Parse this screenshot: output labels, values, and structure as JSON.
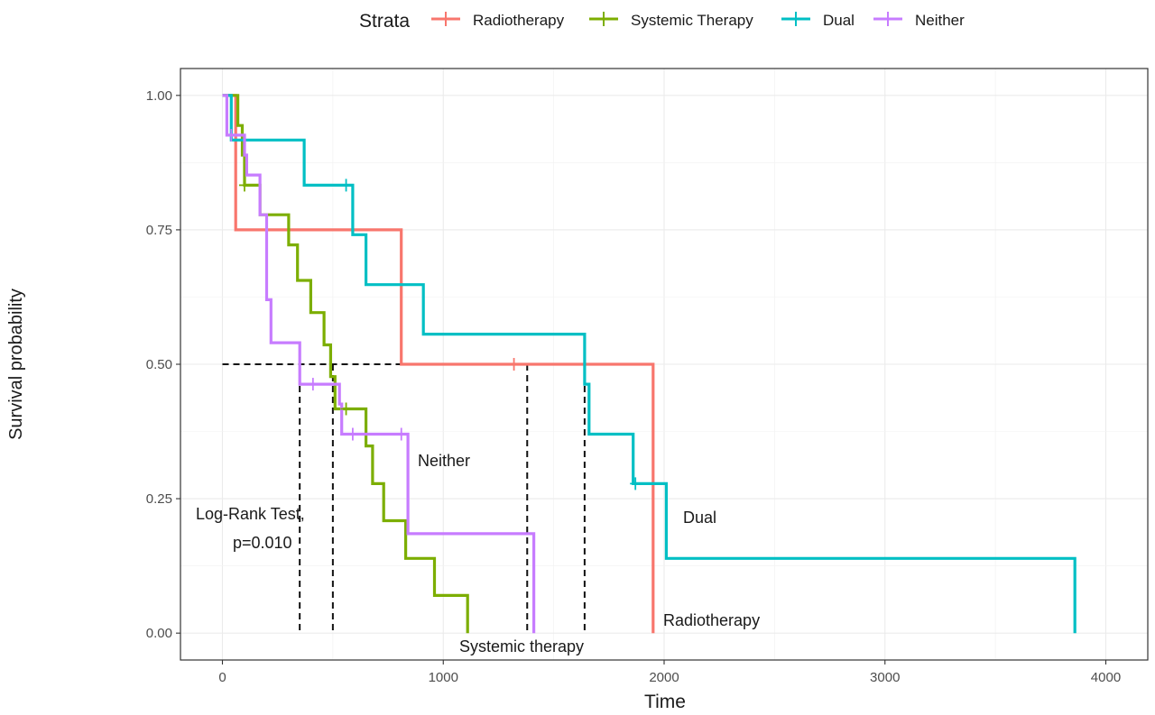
{
  "chart_data": {
    "type": "line",
    "subtype": "kaplan-meier-step",
    "xlabel": "Time",
    "ylabel": "Survival probability",
    "xlim": [
      -190,
      4190
    ],
    "ylim": [
      -0.05,
      1.05
    ],
    "x_ticks": [
      0,
      1000,
      2000,
      3000,
      4000
    ],
    "y_ticks": [
      0.0,
      0.25,
      0.5,
      0.75,
      1.0
    ],
    "y_tick_labels": [
      "0.00",
      "0.25",
      "0.50",
      "0.75",
      "1.00"
    ],
    "x_tick_labels": [
      "0",
      "1000",
      "2000",
      "3000",
      "4000"
    ],
    "grid": true,
    "legend": {
      "title": "Strata",
      "position": "top",
      "entries": [
        "Radiotherapy",
        "Systemic Therapy",
        "Dual",
        "Neither"
      ]
    },
    "series": [
      {
        "name": "Radiotherapy",
        "color": "#F8766D",
        "points": [
          [
            0,
            1.0
          ],
          [
            60,
            1.0
          ],
          [
            60,
            0.75
          ],
          [
            810,
            0.75
          ],
          [
            810,
            0.5
          ],
          [
            1950,
            0.5
          ],
          [
            1950,
            0.0
          ]
        ],
        "censor_marks": [
          [
            1320,
            0.5
          ]
        ]
      },
      {
        "name": "Systemic Therapy",
        "color": "#7CAE00",
        "points": [
          [
            0,
            1.0
          ],
          [
            70,
            1.0
          ],
          [
            70,
            0.944
          ],
          [
            90,
            0.944
          ],
          [
            90,
            0.889
          ],
          [
            100,
            0.889
          ],
          [
            100,
            0.833
          ],
          [
            170,
            0.833
          ],
          [
            170,
            0.778
          ],
          [
            300,
            0.778
          ],
          [
            300,
            0.722
          ],
          [
            340,
            0.722
          ],
          [
            340,
            0.656
          ],
          [
            400,
            0.656
          ],
          [
            400,
            0.596
          ],
          [
            460,
            0.596
          ],
          [
            460,
            0.536
          ],
          [
            490,
            0.536
          ],
          [
            490,
            0.477
          ],
          [
            510,
            0.477
          ],
          [
            510,
            0.417
          ],
          [
            650,
            0.417
          ],
          [
            650,
            0.348
          ],
          [
            680,
            0.348
          ],
          [
            680,
            0.278
          ],
          [
            730,
            0.278
          ],
          [
            730,
            0.209
          ],
          [
            830,
            0.209
          ],
          [
            830,
            0.139
          ],
          [
            960,
            0.139
          ],
          [
            960,
            0.07
          ],
          [
            1110,
            0.07
          ],
          [
            1110,
            0.0
          ]
        ],
        "censor_marks": [
          [
            100,
            0.833
          ],
          [
            560,
            0.417
          ]
        ]
      },
      {
        "name": "Dual",
        "color": "#00BFC4",
        "points": [
          [
            0,
            1.0
          ],
          [
            40,
            1.0
          ],
          [
            40,
            0.917
          ],
          [
            370,
            0.917
          ],
          [
            370,
            0.833
          ],
          [
            590,
            0.833
          ],
          [
            590,
            0.741
          ],
          [
            650,
            0.741
          ],
          [
            650,
            0.648
          ],
          [
            910,
            0.648
          ],
          [
            910,
            0.556
          ],
          [
            1640,
            0.556
          ],
          [
            1640,
            0.463
          ],
          [
            1660,
            0.463
          ],
          [
            1660,
            0.37
          ],
          [
            1860,
            0.37
          ],
          [
            1860,
            0.278
          ],
          [
            2010,
            0.278
          ],
          [
            2010,
            0.139
          ],
          [
            3860,
            0.139
          ],
          [
            3860,
            0.0
          ]
        ],
        "censor_marks": [
          [
            560,
            0.833
          ],
          [
            1870,
            0.278
          ]
        ]
      },
      {
        "name": "Neither",
        "color": "#C77CFF",
        "points": [
          [
            0,
            1.0
          ],
          [
            20,
            1.0
          ],
          [
            20,
            0.926
          ],
          [
            100,
            0.926
          ],
          [
            100,
            0.889
          ],
          [
            110,
            0.889
          ],
          [
            110,
            0.852
          ],
          [
            170,
            0.852
          ],
          [
            170,
            0.778
          ],
          [
            200,
            0.778
          ],
          [
            200,
            0.704
          ],
          [
            200,
            0.62
          ],
          [
            220,
            0.62
          ],
          [
            220,
            0.54
          ],
          [
            350,
            0.54
          ],
          [
            350,
            0.463
          ],
          [
            530,
            0.463
          ],
          [
            530,
            0.426
          ],
          [
            540,
            0.426
          ],
          [
            540,
            0.37
          ],
          [
            840,
            0.37
          ],
          [
            840,
            0.185
          ],
          [
            1410,
            0.185
          ],
          [
            1410,
            0.0
          ]
        ],
        "censor_marks": [
          [
            40,
            0.926
          ],
          [
            410,
            0.463
          ],
          [
            590,
            0.37
          ],
          [
            810,
            0.37
          ]
        ]
      }
    ],
    "median_reference": {
      "y": 0.5,
      "x_max": 1640,
      "verticals": [
        350,
        500,
        1380,
        1640
      ]
    },
    "annotations": {
      "test_line1": "Log-Rank Test,",
      "test_line2": "p=0.010",
      "label_neither": "Neither",
      "label_dual": "Dual",
      "label_radiotherapy": "Radiotherapy",
      "label_systemic": "Systemic therapy"
    }
  }
}
